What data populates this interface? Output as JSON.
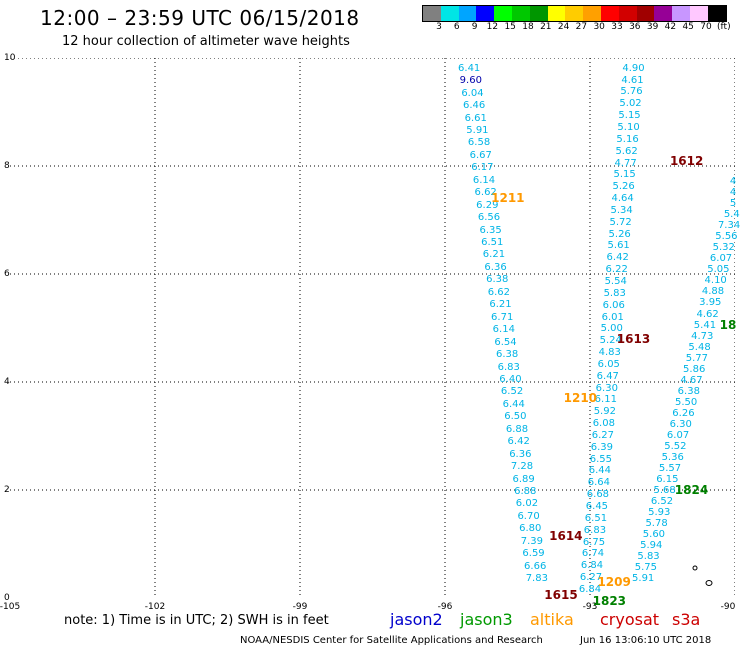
{
  "title": "12:00 – 23:59 UTC 06/15/2018",
  "subtitle": "12 hour collection of altimeter wave heights",
  "colorbar": {
    "colors": [
      "#808080",
      "#00e5e5",
      "#00a5ff",
      "#0000ff",
      "#00ff00",
      "#00c800",
      "#009600",
      "#ffff00",
      "#ffcc00",
      "#ffa000",
      "#ff0000",
      "#d20000",
      "#a00000",
      "#960096",
      "#c896ff",
      "#ffc8ff",
      "#000000"
    ],
    "labels": [
      "3",
      "6",
      "9",
      "12",
      "15",
      "18",
      "21",
      "24",
      "27",
      "30",
      "33",
      "36",
      "39",
      "42",
      "45",
      "70",
      "(ft)"
    ]
  },
  "axes": {
    "x_ticks": [
      "-105",
      "-102",
      "-99",
      "-96",
      "-93",
      "-90"
    ],
    "y_ticks": [
      "10",
      "8",
      "6",
      "4",
      "2",
      "0"
    ],
    "xlim": [
      -105,
      -90
    ],
    "ylim": [
      0,
      10
    ]
  },
  "note": "note:  1) Time is in UTC;  2) SWH is in feet",
  "legend": [
    {
      "name": "jason2",
      "color": "#0000cc"
    },
    {
      "name": "jason3",
      "color": "#009900"
    },
    {
      "name": "altika",
      "color": "#ff9900"
    },
    {
      "name": "cryosat",
      "color": "#cc0000"
    },
    {
      "name": "s3a",
      "color": "#cc0000"
    }
  ],
  "footer": "NOAA/NESDIS Center for Satellite Applications and Research",
  "footer_time": "Jun 16 13:06:10 UTC 2018",
  "pass_labels": [
    {
      "text": "1612",
      "lon": -91.0,
      "lat": 8.1,
      "color": "#800000"
    },
    {
      "text": "1211",
      "lon": -94.7,
      "lat": 7.4,
      "color": "#ff9900"
    },
    {
      "text": "1613",
      "lon": -92.1,
      "lat": 4.8,
      "color": "#800000"
    },
    {
      "text": "1210",
      "lon": -93.2,
      "lat": 3.7,
      "color": "#ff9900"
    },
    {
      "text": "1824",
      "lon": -90.9,
      "lat": 2.0,
      "color": "#008000"
    },
    {
      "text": "1614",
      "lon": -93.5,
      "lat": 1.15,
      "color": "#800000"
    },
    {
      "text": "1209",
      "lon": -92.5,
      "lat": 0.3,
      "color": "#ff9900"
    },
    {
      "text": "1615",
      "lon": -93.6,
      "lat": 0.05,
      "color": "#800000"
    },
    {
      "text": "1823",
      "lon": -92.6,
      "lat": -0.05,
      "color": "#008000"
    },
    {
      "text": "18",
      "lon": -90.1,
      "lat": 5.05,
      "color": "#008000"
    }
  ],
  "tracks": [
    {
      "name": "track-a",
      "color": "#00b4e6",
      "lon_start": -95.5,
      "lat_start": 9.8,
      "lon_end": -94.1,
      "lat_end": 0.35,
      "values": [
        "6.41",
        "9.60",
        "6.04",
        "6.46",
        "6.61",
        "5.91",
        "6.58",
        "6.67",
        "6.17",
        "6.14",
        "6.62",
        "6.29",
        "6.56",
        "6.35",
        "6.51",
        "6.21",
        "6.36",
        "6.38",
        "6.62",
        "6.21",
        "6.71",
        "6.14",
        "6.54",
        "6.38",
        "6.83",
        "6.40",
        "6.52",
        "6.44",
        "6.50",
        "6.88",
        "6.42",
        "6.36",
        "7.28",
        "6.89",
        "6.88",
        "6.02",
        "6.70",
        "6.80",
        "7.39",
        "6.59",
        "6.66",
        "7.83"
      ]
    },
    {
      "name": "track-b",
      "color": "#00b4e6",
      "lon_start": -92.1,
      "lat_start": 9.8,
      "lon_end": -93.0,
      "lat_end": 0.15,
      "values": [
        "4.90",
        "4.61",
        "5.76",
        "5.02",
        "5.15",
        "5.10",
        "5.16",
        "5.62",
        "4.77",
        "5.15",
        "5.26",
        "4.64",
        "5.34",
        "5.72",
        "5.26",
        "5.61",
        "6.42",
        "6.22",
        "5.54",
        "5.83",
        "6.06",
        "6.01",
        "5.00",
        "5.24",
        "4.83",
        "6.05",
        "6.47",
        "6.30",
        "6.11",
        "5.92",
        "6.08",
        "6.27",
        "6.39",
        "6.55",
        "6.44",
        "6.64",
        "6.68",
        "6.45",
        "6.51",
        "6.83",
        "6.75",
        "6.74",
        "6.84",
        "6.27",
        "6.84"
      ]
    },
    {
      "name": "track-c",
      "color": "#00b4e6",
      "lon_start": -89.9,
      "lat_start": 7.7,
      "lon_end": -91.9,
      "lat_end": 0.35,
      "values": [
        "4",
        "4",
        "5",
        "5.4",
        "7.34",
        "5.56",
        "5.32",
        "6.07",
        "5.05",
        "4.10",
        "4.88",
        "3.95",
        "4.62",
        "5.41",
        "4.73",
        "5.48",
        "5.77",
        "5.86",
        "4.67",
        "6.38",
        "5.50",
        "6.26",
        "6.30",
        "6.07",
        "5.52",
        "5.36",
        "5.57",
        "6.15",
        "5.68",
        "6.52",
        "5.93",
        "5.78",
        "5.60",
        "5.94",
        "5.83",
        "5.75",
        "5.91"
      ]
    }
  ]
}
